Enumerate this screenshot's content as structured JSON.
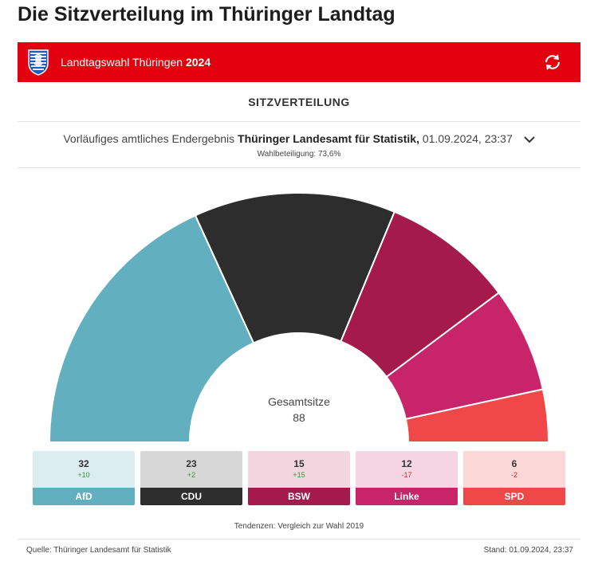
{
  "header": {
    "title": "Die Sitzverteilung im Thüringer Landtag"
  },
  "banner": {
    "label_regular": "Landtagswahl Thüringen",
    "label_year": "2024",
    "bg_color": "#e3000f"
  },
  "section": {
    "title": "SITZVERTEILUNG"
  },
  "result": {
    "prefix": "Vorläufiges amtliches Endergebnis",
    "organization": "Thüringer Landesamt für Statistik,",
    "timestamp": "01.09.2024, 23:37",
    "turnout": "Wahlbeteiligung: 73,6%"
  },
  "chart_data": {
    "type": "pie",
    "shape": "semicircle",
    "total_label": "Gesamtsitze",
    "total_value": "88",
    "parties": [
      {
        "name": "AfD",
        "seats": 32,
        "delta": "+10",
        "color": "#62b0bf",
        "card_bg": "#dcedf1",
        "delta_color": "#2e9a2e"
      },
      {
        "name": "CDU",
        "seats": 23,
        "delta": "+2",
        "color": "#2d2d2d",
        "card_bg": "#d7d7d7",
        "delta_color": "#2e9a2e"
      },
      {
        "name": "BSW",
        "seats": 15,
        "delta": "+15",
        "color": "#a31a4b",
        "card_bg": "#f1d6df",
        "delta_color": "#2e9a2e"
      },
      {
        "name": "Linke",
        "seats": 12,
        "delta": "-17",
        "color": "#c8246a",
        "card_bg": "#f6d5e4",
        "delta_color": "#d0262d"
      },
      {
        "name": "SPD",
        "seats": 6,
        "delta": "-2",
        "color": "#f04848",
        "card_bg": "#fdd8d8",
        "delta_color": "#d0262d"
      }
    ]
  },
  "footer": {
    "note": "Tendenzen: Vergleich zur Wahl 2019",
    "source": "Quelle: Thüringer Landesamt für Statistik",
    "stand": "Stand: 01.09.2024, 23:37"
  }
}
